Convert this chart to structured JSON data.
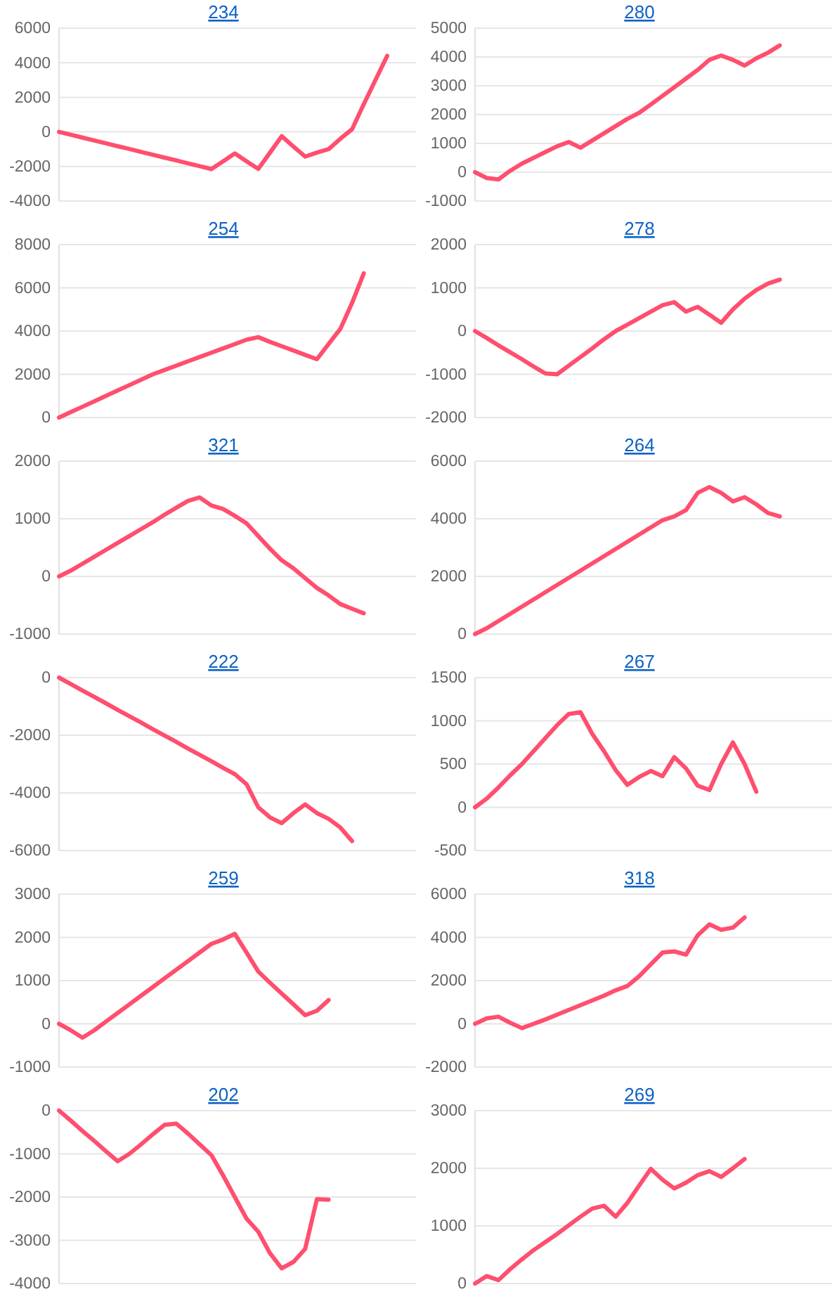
{
  "chart_data": [
    {
      "type": "line",
      "title": "234",
      "categories": [
        null,
        null,
        null,
        null,
        null,
        null,
        null,
        null,
        null,
        null,
        null,
        null,
        null,
        null,
        null,
        null,
        null,
        null,
        null,
        null,
        null,
        null,
        null,
        null,
        null,
        null,
        null,
        null,
        null,
        null,
        null
      ],
      "series": [
        {
          "color": "#ff4f6e",
          "values": [
            0,
            -165,
            -330,
            -500,
            -660,
            -830,
            -990,
            -1160,
            -1320,
            -1490,
            -1650,
            -1820,
            -1980,
            -2150,
            -1700,
            -1250,
            -1700,
            -2140,
            -1200,
            -250,
            -850,
            -1430,
            -1200,
            -1000,
            -400,
            150,
            1600,
            3000,
            4400,
            null,
            null
          ]
        }
      ],
      "ylim": [
        -4000,
        6000
      ],
      "yticks": [
        -4000,
        -2000,
        0,
        2000,
        4000,
        6000
      ],
      "grid": "y",
      "tick_labels": "y"
    },
    {
      "type": "line",
      "title": "280",
      "categories": [
        null,
        null,
        null,
        null,
        null,
        null,
        null,
        null,
        null,
        null,
        null,
        null,
        null,
        null,
        null,
        null,
        null,
        null,
        null,
        null,
        null,
        null,
        null,
        null,
        null,
        null,
        null,
        null,
        null,
        null,
        null
      ],
      "series": [
        {
          "color": "#ff4f6e",
          "values": [
            0,
            -200,
            -250,
            50,
            300,
            500,
            700,
            900,
            1050,
            850,
            1100,
            1350,
            1600,
            1850,
            2060,
            2350,
            2650,
            2950,
            3250,
            3550,
            3900,
            4050,
            3900,
            3700,
            3950,
            4150,
            4400,
            null,
            null,
            null,
            null
          ]
        }
      ],
      "ylim": [
        -1000,
        5000
      ],
      "yticks": [
        -1000,
        0,
        1000,
        2000,
        3000,
        4000,
        5000
      ],
      "grid": "y",
      "tick_labels": "y"
    },
    {
      "type": "line",
      "title": "254",
      "categories": [
        null,
        null,
        null,
        null,
        null,
        null,
        null,
        null,
        null,
        null,
        null,
        null,
        null,
        null,
        null,
        null,
        null,
        null,
        null,
        null,
        null,
        null,
        null,
        null,
        null,
        null,
        null,
        null,
        null,
        null,
        null
      ],
      "series": [
        {
          "color": "#ff4f6e",
          "values": [
            0,
            250,
            500,
            750,
            1000,
            1250,
            1500,
            1750,
            2000,
            2200,
            2400,
            2600,
            2800,
            3000,
            3200,
            3400,
            3600,
            3720,
            3500,
            3300,
            3100,
            2900,
            2700,
            3400,
            4100,
            5300,
            6670,
            null,
            null,
            null,
            null
          ]
        }
      ],
      "ylim": [
        0,
        8000
      ],
      "yticks": [
        0,
        2000,
        4000,
        6000,
        8000
      ],
      "grid": "y",
      "tick_labels": "y"
    },
    {
      "type": "line",
      "title": "278",
      "categories": [
        null,
        null,
        null,
        null,
        null,
        null,
        null,
        null,
        null,
        null,
        null,
        null,
        null,
        null,
        null,
        null,
        null,
        null,
        null,
        null,
        null,
        null,
        null,
        null,
        null,
        null,
        null,
        null,
        null,
        null,
        null
      ],
      "series": [
        {
          "color": "#ff4f6e",
          "values": [
            0,
            -160,
            -330,
            -490,
            -650,
            -820,
            -980,
            -1000,
            -800,
            -600,
            -400,
            -190,
            0,
            150,
            300,
            450,
            600,
            670,
            450,
            560,
            380,
            190,
            500,
            750,
            950,
            1100,
            1190,
            null,
            null,
            null,
            null
          ]
        }
      ],
      "ylim": [
        -2000,
        2000
      ],
      "yticks": [
        -2000,
        -1000,
        0,
        1000,
        2000
      ],
      "grid": "y",
      "tick_labels": "y"
    },
    {
      "type": "line",
      "title": "321",
      "categories": [
        null,
        null,
        null,
        null,
        null,
        null,
        null,
        null,
        null,
        null,
        null,
        null,
        null,
        null,
        null,
        null,
        null,
        null,
        null,
        null,
        null,
        null,
        null,
        null,
        null,
        null,
        null,
        null,
        null,
        null,
        null
      ],
      "series": [
        {
          "color": "#ff4f6e",
          "values": [
            0,
            100,
            220,
            340,
            460,
            580,
            700,
            820,
            940,
            1070,
            1190,
            1310,
            1370,
            1230,
            1170,
            1050,
            920,
            700,
            480,
            280,
            140,
            -30,
            -200,
            -330,
            -480,
            -560,
            -640,
            null,
            null,
            null,
            null
          ]
        }
      ],
      "ylim": [
        -1000,
        2000
      ],
      "yticks": [
        -1000,
        0,
        1000,
        2000
      ],
      "grid": "y",
      "tick_labels": "y"
    },
    {
      "type": "line",
      "title": "264",
      "categories": [
        null,
        null,
        null,
        null,
        null,
        null,
        null,
        null,
        null,
        null,
        null,
        null,
        null,
        null,
        null,
        null,
        null,
        null,
        null,
        null,
        null,
        null,
        null,
        null,
        null,
        null,
        null,
        null,
        null,
        null,
        null
      ],
      "series": [
        {
          "color": "#ff4f6e",
          "values": [
            0,
            200,
            450,
            700,
            950,
            1200,
            1450,
            1700,
            1950,
            2200,
            2450,
            2700,
            2950,
            3200,
            3450,
            3700,
            3950,
            4080,
            4300,
            4900,
            5100,
            4900,
            4600,
            4750,
            4500,
            4200,
            4080,
            null,
            null,
            null,
            null
          ]
        }
      ],
      "ylim": [
        0,
        6000
      ],
      "yticks": [
        0,
        2000,
        4000,
        6000
      ],
      "grid": "y",
      "tick_labels": "y"
    },
    {
      "type": "line",
      "title": "222",
      "categories": [
        null,
        null,
        null,
        null,
        null,
        null,
        null,
        null,
        null,
        null,
        null,
        null,
        null,
        null,
        null,
        null,
        null,
        null,
        null,
        null,
        null,
        null,
        null,
        null,
        null,
        null,
        null,
        null,
        null,
        null,
        null
      ],
      "series": [
        {
          "color": "#ff4f6e",
          "values": [
            0,
            -220,
            -450,
            -670,
            -890,
            -1120,
            -1340,
            -1560,
            -1790,
            -2010,
            -2230,
            -2460,
            -2680,
            -2900,
            -3130,
            -3350,
            -3700,
            -4500,
            -4850,
            -5050,
            -4700,
            -4400,
            -4700,
            -4900,
            -5200,
            -5670,
            null,
            null,
            null,
            null,
            null
          ]
        }
      ],
      "ylim": [
        -6000,
        0
      ],
      "yticks": [
        -6000,
        -4000,
        -2000,
        0
      ],
      "grid": "y",
      "tick_labels": "y"
    },
    {
      "type": "line",
      "title": "267",
      "categories": [
        null,
        null,
        null,
        null,
        null,
        null,
        null,
        null,
        null,
        null,
        null,
        null,
        null,
        null,
        null,
        null,
        null,
        null,
        null,
        null,
        null,
        null,
        null,
        null,
        null,
        null,
        null,
        null,
        null,
        null,
        null
      ],
      "series": [
        {
          "color": "#ff4f6e",
          "values": [
            0,
            100,
            230,
            370,
            500,
            650,
            800,
            950,
            1080,
            1100,
            850,
            650,
            430,
            260,
            350,
            420,
            360,
            580,
            450,
            250,
            200,
            500,
            750,
            500,
            180,
            null,
            null,
            null,
            null,
            null,
            null
          ]
        }
      ],
      "ylim": [
        -500,
        1500
      ],
      "yticks": [
        -500,
        0,
        500,
        1000,
        1500
      ],
      "grid": "y",
      "tick_labels": "y"
    },
    {
      "type": "line",
      "title": "259",
      "categories": [
        null,
        null,
        null,
        null,
        null,
        null,
        null,
        null,
        null,
        null,
        null,
        null,
        null,
        null,
        null,
        null,
        null,
        null,
        null,
        null,
        null,
        null,
        null,
        null,
        null,
        null,
        null,
        null,
        null,
        null,
        null
      ],
      "series": [
        {
          "color": "#ff4f6e",
          "values": [
            0,
            -150,
            -320,
            -150,
            50,
            250,
            450,
            650,
            850,
            1050,
            1250,
            1450,
            1650,
            1850,
            1950,
            2080,
            1650,
            1210,
            950,
            700,
            450,
            200,
            300,
            550,
            null,
            null,
            null,
            null,
            null,
            null,
            null
          ]
        }
      ],
      "ylim": [
        -1000,
        3000
      ],
      "yticks": [
        -1000,
        0,
        1000,
        2000,
        3000
      ],
      "grid": "y",
      "tick_labels": "y"
    },
    {
      "type": "line",
      "title": "318",
      "categories": [
        null,
        null,
        null,
        null,
        null,
        null,
        null,
        null,
        null,
        null,
        null,
        null,
        null,
        null,
        null,
        null,
        null,
        null,
        null,
        null,
        null,
        null,
        null,
        null,
        null,
        null,
        null,
        null,
        null,
        null,
        null
      ],
      "series": [
        {
          "color": "#ff4f6e",
          "values": [
            0,
            250,
            330,
            50,
            -200,
            0,
            200,
            420,
            640,
            860,
            1080,
            1300,
            1550,
            1750,
            2200,
            2750,
            3300,
            3350,
            3200,
            4100,
            4600,
            4350,
            4450,
            4920,
            null,
            null,
            null,
            null,
            null,
            null,
            null
          ]
        }
      ],
      "ylim": [
        -2000,
        6000
      ],
      "yticks": [
        -2000,
        0,
        2000,
        4000,
        6000
      ],
      "grid": "y",
      "tick_labels": "y"
    },
    {
      "type": "line",
      "title": "202",
      "categories": [
        null,
        null,
        null,
        null,
        null,
        null,
        null,
        null,
        null,
        null,
        null,
        null,
        null,
        null,
        null,
        null,
        null,
        null,
        null,
        null,
        null,
        null,
        null,
        null,
        null,
        null,
        null,
        null,
        null,
        null,
        null
      ],
      "series": [
        {
          "color": "#ff4f6e",
          "values": [
            0,
            -230,
            -470,
            -700,
            -940,
            -1170,
            -1000,
            -780,
            -550,
            -330,
            -300,
            -530,
            -780,
            -1030,
            -1500,
            -2000,
            -2500,
            -2800,
            -3300,
            -3650,
            -3500,
            -3200,
            -2050,
            -2060,
            null,
            null,
            null,
            null,
            null,
            null,
            null
          ]
        }
      ],
      "ylim": [
        -4000,
        0
      ],
      "yticks": [
        -4000,
        -3000,
        -2000,
        -1000,
        0
      ],
      "grid": "y",
      "tick_labels": "y"
    },
    {
      "type": "line",
      "title": "269",
      "categories": [
        null,
        null,
        null,
        null,
        null,
        null,
        null,
        null,
        null,
        null,
        null,
        null,
        null,
        null,
        null,
        null,
        null,
        null,
        null,
        null,
        null,
        null,
        null,
        null,
        null,
        null,
        null,
        null,
        null,
        null,
        null
      ],
      "series": [
        {
          "color": "#ff4f6e",
          "values": [
            0,
            130,
            60,
            250,
            420,
            580,
            720,
            860,
            1010,
            1160,
            1300,
            1350,
            1160,
            1400,
            1700,
            1990,
            1800,
            1650,
            1750,
            1880,
            1950,
            1850,
            2000,
            2160,
            null,
            null,
            null,
            null,
            null,
            null,
            null
          ]
        }
      ],
      "ylim": [
        0,
        3000
      ],
      "yticks": [
        0,
        1000,
        2000,
        3000
      ],
      "grid": "y",
      "tick_labels": "y"
    }
  ]
}
